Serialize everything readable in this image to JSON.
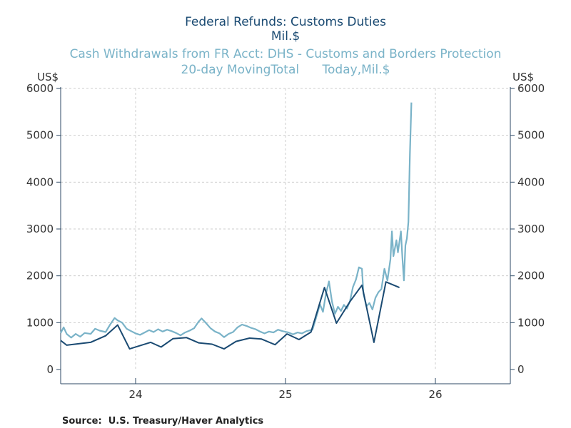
{
  "chart_data": {
    "type": "line",
    "title_lines": [
      "Federal Refunds: Customs Duties",
      "Mil.$"
    ],
    "subtitle_lines": [
      "Cash Withdrawals from FR Acct: DHS - Customs and Borders Protection",
      "20-day MovingTotal      Today,Mil.$"
    ],
    "left_unit": "US$",
    "right_unit": "US$",
    "source": "Source:  U.S. Treasury/Haver Analytics",
    "x_tick_labels": [
      {
        "x": 2024.0,
        "label": "24"
      },
      {
        "x": 2025.0,
        "label": "25"
      },
      {
        "x": 2026.0,
        "label": "26"
      }
    ],
    "x_year_boundaries": [
      2024.0,
      2025.0,
      2026.0
    ],
    "xlim": [
      2023.5,
      2026.5
    ],
    "ylim": [
      0,
      6000
    ],
    "y_ticks": [
      0,
      1000,
      2000,
      3000,
      4000,
      5000,
      6000
    ],
    "grid": true,
    "colors": {
      "refunds": "#1a4a72",
      "withdrawals": "#7ab3c8",
      "axis": "#2c4a66",
      "grid": "#cccccc",
      "title": "#1a4a72",
      "subtitle": "#7ab3c8",
      "tick_text": "#333333"
    },
    "series": [
      {
        "name": "Federal Refunds: Customs Duties",
        "axis": "left",
        "points": [
          [
            2023.5,
            620
          ],
          [
            2023.54,
            520
          ],
          [
            2023.7,
            580
          ],
          [
            2023.8,
            720
          ],
          [
            2023.88,
            950
          ],
          [
            2023.96,
            440
          ],
          [
            2024.1,
            580
          ],
          [
            2024.17,
            480
          ],
          [
            2024.25,
            660
          ],
          [
            2024.34,
            680
          ],
          [
            2024.42,
            570
          ],
          [
            2024.51,
            540
          ],
          [
            2024.59,
            440
          ],
          [
            2024.67,
            600
          ],
          [
            2024.76,
            670
          ],
          [
            2024.84,
            650
          ],
          [
            2024.93,
            530
          ],
          [
            2025.01,
            760
          ],
          [
            2025.09,
            640
          ],
          [
            2025.17,
            800
          ],
          [
            2025.26,
            1750
          ],
          [
            2025.34,
            990
          ],
          [
            2025.43,
            1450
          ],
          [
            2025.51,
            1800
          ],
          [
            2025.59,
            580
          ],
          [
            2025.67,
            1870
          ],
          [
            2025.76,
            1750
          ]
        ]
      },
      {
        "name": "Cash Withdrawals from FR Acct: DHS - Customs and Borders Protection",
        "axis": "right",
        "points": [
          [
            2023.5,
            780
          ],
          [
            2023.52,
            900
          ],
          [
            2023.54,
            760
          ],
          [
            2023.57,
            680
          ],
          [
            2023.6,
            760
          ],
          [
            2023.63,
            700
          ],
          [
            2023.66,
            780
          ],
          [
            2023.7,
            760
          ],
          [
            2023.73,
            870
          ],
          [
            2023.76,
            830
          ],
          [
            2023.8,
            800
          ],
          [
            2023.83,
            960
          ],
          [
            2023.86,
            1100
          ],
          [
            2023.88,
            1050
          ],
          [
            2023.91,
            1000
          ],
          [
            2023.94,
            870
          ],
          [
            2023.97,
            820
          ],
          [
            2024.0,
            770
          ],
          [
            2024.03,
            740
          ],
          [
            2024.06,
            790
          ],
          [
            2024.09,
            840
          ],
          [
            2024.12,
            800
          ],
          [
            2024.15,
            860
          ],
          [
            2024.18,
            810
          ],
          [
            2024.21,
            850
          ],
          [
            2024.24,
            820
          ],
          [
            2024.27,
            780
          ],
          [
            2024.3,
            730
          ],
          [
            2024.33,
            790
          ],
          [
            2024.36,
            830
          ],
          [
            2024.39,
            880
          ],
          [
            2024.42,
            1020
          ],
          [
            2024.44,
            1090
          ],
          [
            2024.47,
            990
          ],
          [
            2024.5,
            880
          ],
          [
            2024.53,
            810
          ],
          [
            2024.56,
            770
          ],
          [
            2024.59,
            690
          ],
          [
            2024.62,
            760
          ],
          [
            2024.65,
            800
          ],
          [
            2024.68,
            900
          ],
          [
            2024.71,
            960
          ],
          [
            2024.74,
            930
          ],
          [
            2024.77,
            890
          ],
          [
            2024.8,
            860
          ],
          [
            2024.83,
            810
          ],
          [
            2024.86,
            770
          ],
          [
            2024.89,
            810
          ],
          [
            2024.92,
            790
          ],
          [
            2024.95,
            850
          ],
          [
            2024.98,
            820
          ],
          [
            2025.02,
            790
          ],
          [
            2025.05,
            750
          ],
          [
            2025.08,
            790
          ],
          [
            2025.11,
            770
          ],
          [
            2025.14,
            820
          ],
          [
            2025.18,
            850
          ],
          [
            2025.2,
            1060
          ],
          [
            2025.23,
            1390
          ],
          [
            2025.25,
            1230
          ],
          [
            2025.27,
            1620
          ],
          [
            2025.29,
            1880
          ],
          [
            2025.31,
            1450
          ],
          [
            2025.33,
            1190
          ],
          [
            2025.35,
            1340
          ],
          [
            2025.37,
            1250
          ],
          [
            2025.39,
            1380
          ],
          [
            2025.41,
            1300
          ],
          [
            2025.43,
            1460
          ],
          [
            2025.45,
            1760
          ],
          [
            2025.47,
            1920
          ],
          [
            2025.49,
            2180
          ],
          [
            2025.51,
            2150
          ],
          [
            2025.52,
            1620
          ],
          [
            2025.54,
            1350
          ],
          [
            2025.56,
            1420
          ],
          [
            2025.58,
            1280
          ],
          [
            2025.6,
            1530
          ],
          [
            2025.62,
            1650
          ],
          [
            2025.64,
            1720
          ],
          [
            2025.66,
            2150
          ],
          [
            2025.68,
            1900
          ],
          [
            2025.7,
            2350
          ],
          [
            2025.71,
            2950
          ],
          [
            2025.72,
            2420
          ],
          [
            2025.74,
            2760
          ],
          [
            2025.75,
            2500
          ],
          [
            2025.77,
            2950
          ],
          [
            2025.78,
            2380
          ],
          [
            2025.79,
            1900
          ],
          [
            2025.8,
            2650
          ],
          [
            2025.81,
            2800
          ],
          [
            2025.82,
            3150
          ],
          [
            2025.83,
            4600
          ],
          [
            2025.84,
            5700
          ]
        ]
      }
    ]
  }
}
